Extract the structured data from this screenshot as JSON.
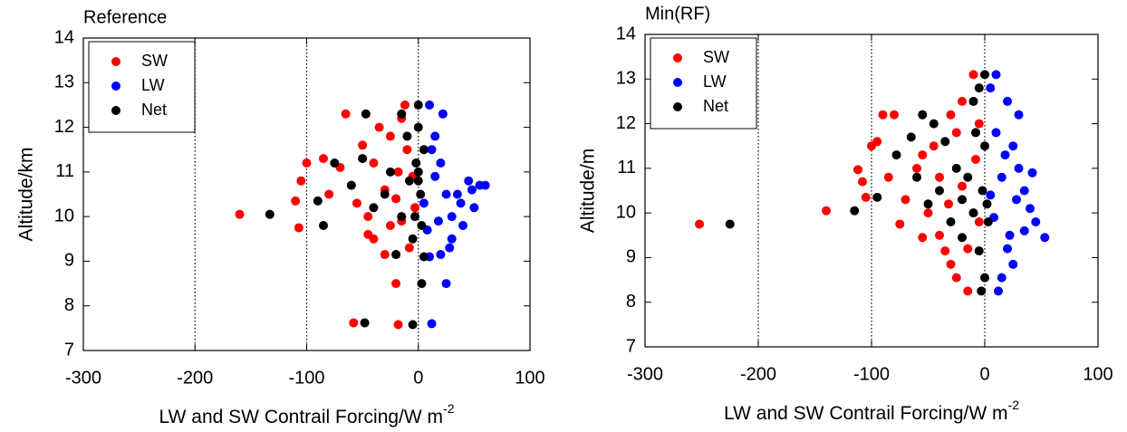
{
  "chart_data": [
    {
      "type": "scatter",
      "title": "Reference",
      "xlabel": "LW and SW Contrail Forcing/W m",
      "xlabel_superscript": "-2",
      "ylabel": "Altitude/km",
      "xlim": [
        -300,
        100
      ],
      "ylim": [
        7,
        14
      ],
      "xticks": [
        -300,
        -200,
        -100,
        0,
        100
      ],
      "yticks": [
        7,
        8,
        9,
        10,
        11,
        12,
        13,
        14
      ],
      "vlines": [
        -200,
        -100,
        0
      ],
      "legend": "upper left",
      "series": [
        {
          "name": "SW",
          "color": "#ff0000",
          "x": [
            -160,
            -107,
            -110,
            -65,
            -58,
            -18,
            -20,
            -100,
            -105,
            -85,
            -70,
            -60,
            -80,
            -45,
            -40,
            -30,
            -25,
            -50,
            -35,
            -15,
            -10,
            -5,
            -20,
            -15,
            -8,
            0,
            -30,
            -40,
            -55,
            -12,
            -25,
            -3,
            -18,
            -45
          ],
          "y": [
            10.05,
            9.75,
            10.35,
            12.3,
            7.62,
            7.58,
            8.5,
            11.2,
            10.8,
            11.3,
            11.1,
            10.7,
            10.5,
            10.0,
            9.5,
            9.15,
            9.8,
            11.6,
            12.0,
            12.2,
            11.5,
            10.9,
            10.4,
            9.9,
            9.3,
            11.0,
            10.6,
            11.2,
            10.3,
            12.5,
            11.8,
            10.2,
            11.0,
            9.6
          ]
        },
        {
          "name": "LW",
          "color": "#0000ff",
          "x": [
            12,
            25,
            20,
            30,
            40,
            50,
            55,
            60,
            45,
            35,
            20,
            15,
            22,
            10,
            30,
            25,
            15,
            5,
            8,
            18,
            12,
            28,
            38,
            48,
            10
          ],
          "y": [
            7.6,
            8.5,
            9.15,
            9.5,
            9.8,
            10.2,
            10.7,
            10.7,
            10.8,
            10.5,
            11.2,
            11.8,
            12.3,
            12.5,
            10.0,
            10.5,
            10.9,
            10.3,
            9.7,
            9.9,
            11.5,
            9.3,
            10.3,
            10.6,
            9.1
          ]
        },
        {
          "name": "Net",
          "color": "#000000",
          "x": [
            -133,
            -85,
            -90,
            -48,
            -5,
            3,
            -47,
            -15,
            -75,
            -60,
            -50,
            -30,
            -15,
            -20,
            5,
            0,
            0,
            0,
            2,
            -3,
            -5,
            5,
            -8,
            -25,
            -40,
            -10,
            3,
            0,
            -2
          ],
          "y": [
            10.05,
            9.8,
            10.35,
            7.62,
            7.58,
            8.5,
            12.3,
            12.3,
            11.2,
            10.7,
            11.3,
            10.5,
            10.0,
            9.15,
            9.1,
            11.0,
            12.0,
            12.5,
            10.5,
            10.0,
            9.5,
            11.5,
            10.8,
            11.0,
            10.2,
            11.8,
            9.8,
            10.8,
            11.2
          ]
        }
      ]
    },
    {
      "type": "scatter",
      "title": "Min(RF)",
      "xlabel": "LW and SW Contrail Forcing/W m",
      "xlabel_superscript": "-2",
      "ylabel": "Altitude/m",
      "xlim": [
        -300,
        100
      ],
      "ylim": [
        7,
        14
      ],
      "xticks": [
        -300,
        -200,
        -100,
        0,
        100
      ],
      "yticks": [
        7,
        8,
        9,
        10,
        11,
        12,
        13,
        14
      ],
      "vlines": [
        -200,
        -100,
        0
      ],
      "legend": "upper left",
      "series": [
        {
          "name": "SW",
          "color": "#ff0000",
          "x": [
            -252,
            -140,
            -112,
            -108,
            -105,
            -100,
            -95,
            -90,
            -80,
            -85,
            -70,
            -60,
            -75,
            -55,
            -50,
            -40,
            -35,
            -30,
            -25,
            -15,
            -10,
            -20,
            -30,
            -45,
            -20,
            -10,
            -5,
            -8,
            -40,
            -25,
            -55,
            -15,
            -32,
            -5
          ],
          "y": [
            9.75,
            10.05,
            10.97,
            10.7,
            10.35,
            11.5,
            11.6,
            12.2,
            12.2,
            10.8,
            10.3,
            11.0,
            9.75,
            9.45,
            10.0,
            9.5,
            9.15,
            8.85,
            8.55,
            8.25,
            13.1,
            12.5,
            12.2,
            11.5,
            10.6,
            10.0,
            9.8,
            11.2,
            10.8,
            11.8,
            11.3,
            9.2,
            10.2,
            12.0
          ]
        },
        {
          "name": "LW",
          "color": "#0000ff",
          "x": [
            53,
            45,
            40,
            35,
            30,
            25,
            30,
            20,
            10,
            5,
            20,
            15,
            12,
            25,
            35,
            28,
            15,
            10,
            8,
            5,
            18,
            22,
            42
          ],
          "y": [
            9.45,
            9.8,
            10.1,
            10.5,
            11.0,
            11.5,
            12.2,
            12.5,
            13.1,
            12.8,
            9.2,
            8.55,
            8.25,
            8.85,
            9.6,
            10.3,
            10.8,
            11.8,
            9.9,
            10.4,
            11.3,
            9.5,
            10.9
          ]
        },
        {
          "name": "Net",
          "color": "#000000",
          "x": [
            -225,
            -115,
            -95,
            -78,
            -65,
            -55,
            -45,
            -60,
            -50,
            -40,
            -30,
            -20,
            -25,
            -10,
            -5,
            0,
            -3,
            0,
            -5,
            -10,
            -2,
            0,
            -15,
            3,
            -35,
            -8,
            2,
            -20
          ],
          "y": [
            9.75,
            10.05,
            10.35,
            11.3,
            11.7,
            12.2,
            12.0,
            10.8,
            10.2,
            10.5,
            9.8,
            9.45,
            11.0,
            12.5,
            12.8,
            13.1,
            8.25,
            8.55,
            9.15,
            10.0,
            10.5,
            11.5,
            10.8,
            9.8,
            11.6,
            11.8,
            10.2,
            10.3
          ]
        }
      ]
    }
  ]
}
